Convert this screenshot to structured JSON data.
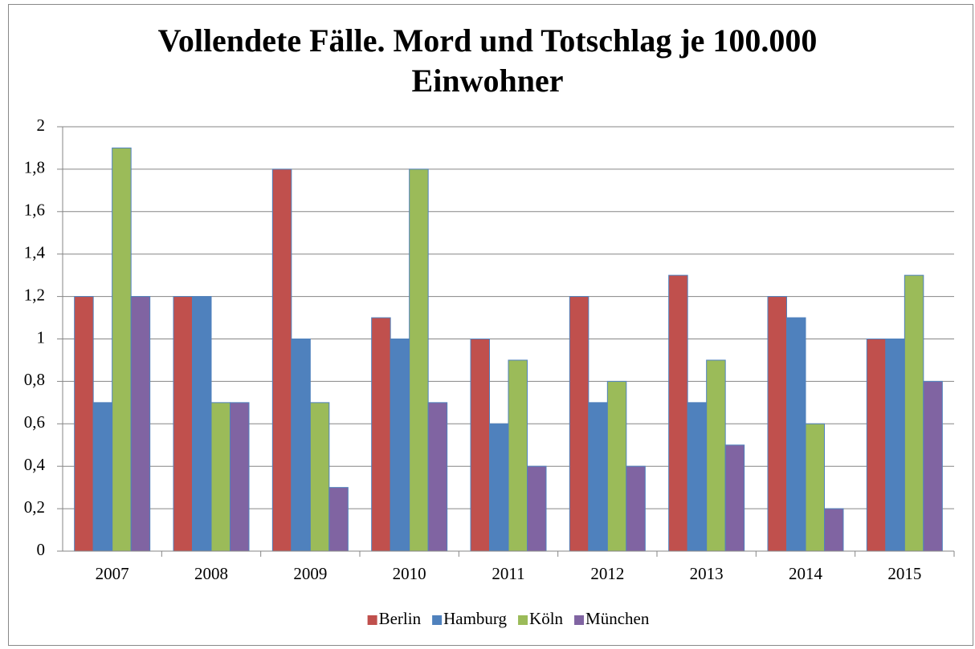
{
  "chart_data": {
    "type": "bar",
    "title": "Vollendete Fälle. Mord und Totschlag je 100.000 Einwohner",
    "categories": [
      "2007",
      "2008",
      "2009",
      "2010",
      "2011",
      "2012",
      "2013",
      "2014",
      "2015"
    ],
    "series": [
      {
        "name": "Berlin",
        "color": "#c0504d",
        "values": [
          1.2,
          1.2,
          1.8,
          1.1,
          1.0,
          1.2,
          1.3,
          1.2,
          1.0
        ]
      },
      {
        "name": "Hamburg",
        "color": "#4f81bd",
        "values": [
          0.7,
          1.2,
          1.0,
          1.0,
          0.6,
          0.7,
          0.7,
          1.1,
          1.0
        ]
      },
      {
        "name": "Köln",
        "color": "#9bbb59",
        "values": [
          1.9,
          0.7,
          0.7,
          1.8,
          0.9,
          0.8,
          0.9,
          0.6,
          1.3
        ]
      },
      {
        "name": "München",
        "color": "#8064a2",
        "values": [
          1.2,
          0.7,
          0.3,
          0.7,
          0.4,
          0.4,
          0.5,
          0.2,
          0.8
        ]
      }
    ],
    "ylim": [
      0,
      2
    ],
    "yticks": [
      0,
      {
        "value": 0.2,
        "label": "0,2"
      },
      {
        "value": 0.4,
        "label": "0,4"
      },
      {
        "value": 0.6,
        "label": "0,6"
      },
      {
        "value": 0.8,
        "label": "0,8"
      },
      1,
      {
        "value": 1.2,
        "label": "1,2"
      },
      {
        "value": 1.4,
        "label": "1,4"
      },
      {
        "value": 1.6,
        "label": "1,6"
      },
      {
        "value": 1.8,
        "label": "1,8"
      },
      2
    ],
    "grid": true,
    "legend": "bottom"
  }
}
